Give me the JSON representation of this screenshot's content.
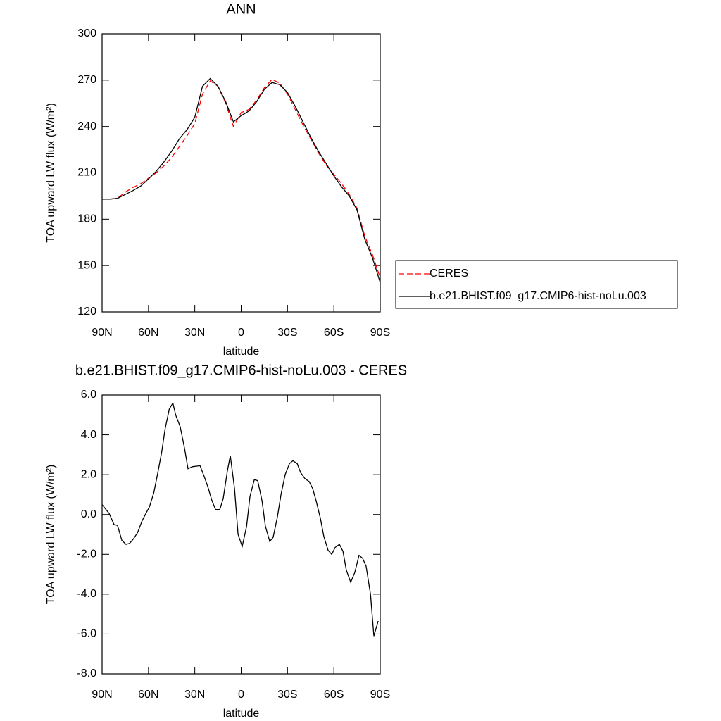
{
  "chart_data": [
    {
      "type": "line",
      "title": "ANN",
      "x_label": "latitude",
      "y_label": "TOA upward LW flux (W/m²)",
      "x": [
        90,
        85,
        80,
        75,
        70,
        65,
        60,
        55,
        50,
        45,
        40,
        35,
        30,
        25,
        20,
        15,
        10,
        5,
        0,
        -5,
        -10,
        -15,
        -20,
        -25,
        -30,
        -35,
        -40,
        -45,
        -50,
        -55,
        -60,
        -65,
        -70,
        -75,
        -80,
        -85,
        -90
      ],
      "series": [
        {
          "name": "CERES",
          "color": "#ff0000",
          "line_style": "dashed",
          "values": [
            193,
            193,
            193.5,
            197.5,
            200.5,
            203,
            206.5,
            210,
            214.5,
            220,
            227,
            234,
            242,
            261,
            269.5,
            266,
            255,
            240,
            249,
            251,
            257,
            265,
            270.5,
            268,
            261,
            251,
            241,
            232,
            223,
            215,
            209,
            203,
            196,
            187,
            169,
            157,
            142
          ]
        },
        {
          "name": "b.e21.BHIST.f09_g17.CMIP6-hist-noLu.003",
          "color": "#000000",
          "line_style": "solid",
          "values": [
            193,
            193,
            193.5,
            196,
            198.5,
            201.5,
            206,
            211,
            217,
            224,
            232,
            238,
            246,
            266,
            271,
            266,
            256,
            243,
            247,
            250,
            256,
            264,
            268.5,
            267,
            262,
            253,
            243,
            233,
            224,
            216,
            208,
            201,
            195,
            186,
            167,
            155,
            139
          ]
        }
      ],
      "xlim": [
        90,
        -90
      ],
      "xticks": [
        {
          "value": 90,
          "label": "90N"
        },
        {
          "value": 60,
          "label": "60N"
        },
        {
          "value": 30,
          "label": "30N"
        },
        0,
        {
          "value": -30,
          "label": "30S"
        },
        {
          "value": -60,
          "label": "60S"
        },
        {
          "value": -90,
          "label": "90S"
        }
      ],
      "ylim": [
        120,
        300
      ],
      "yticks": [
        120,
        150,
        180,
        210,
        240,
        270,
        300
      ],
      "legend": "right"
    },
    {
      "type": "line",
      "title": "b.e21.BHIST.f09_g17.CMIP6-hist-noLu.003 - CERES",
      "x_label": "latitude",
      "y_label": "TOA upward LW flux (W/m²)",
      "x": [
        90,
        85.4,
        82.3,
        80,
        77.2,
        74.5,
        72.2,
        69.5,
        67,
        64.3,
        62,
        59.3,
        56.5,
        54.2,
        51.5,
        49.2,
        46.5,
        44.2,
        42.4,
        39.4,
        36.6,
        34.4,
        31.6,
        26.6,
        23.9,
        21.6,
        18.9,
        16.6,
        13.8,
        11.6,
        8.9,
        7,
        4.3,
        2,
        -0.7,
        -3.5,
        -5.7,
        -8.5,
        -10.7,
        -13.5,
        -15.7,
        -18.5,
        -20.7,
        -23.5,
        -25.8,
        -28.5,
        -31.2,
        -33.5,
        -36.3,
        -38.5,
        -41.3,
        -44,
        -46.3,
        -48.5,
        -51.3,
        -53.5,
        -56.3,
        -58.6,
        -60.9,
        -63.6,
        -65.9,
        -68.1,
        -70.9,
        -73.6,
        -76.3,
        -78.6,
        -80.9,
        -83.7,
        -85.9,
        -88.7
      ],
      "series": [
        {
          "color": "#000000",
          "line_style": "solid",
          "values": [
            0.5,
            0.05,
            -0.5,
            -0.55,
            -1.3,
            -1.5,
            -1.45,
            -1.2,
            -0.9,
            -0.35,
            0,
            0.4,
            1.1,
            2,
            3.1,
            4.3,
            5.3,
            5.6,
            5,
            4.4,
            3.3,
            2.3,
            2.4,
            2.45,
            1.9,
            1.4,
            0.7,
            0.25,
            0.25,
            0.8,
            2.2,
            2.95,
            1.3,
            -1,
            -1.6,
            -0.6,
            0.9,
            1.75,
            1.7,
            0.7,
            -0.6,
            -1.35,
            -1.15,
            -0.1,
            1,
            2,
            2.55,
            2.7,
            2.55,
            2.1,
            1.8,
            1.65,
            1.3,
            0.7,
            -0.2,
            -1.1,
            -1.8,
            -2,
            -1.65,
            -1.5,
            -1.85,
            -2.8,
            -3.4,
            -2.9,
            -2.05,
            -2.2,
            -2.6,
            -4,
            -6.1,
            -5.35
          ]
        }
      ],
      "xlim": [
        90,
        -90
      ],
      "xticks": [
        {
          "value": 90,
          "label": "90N"
        },
        {
          "value": 60,
          "label": "60N"
        },
        {
          "value": 30,
          "label": "30N"
        },
        0,
        {
          "value": -30,
          "label": "30S"
        },
        {
          "value": -60,
          "label": "60S"
        },
        {
          "value": -90,
          "label": "90S"
        }
      ],
      "ylim": [
        -8,
        6
      ],
      "yticks": [
        {
          "value": -8,
          "label": "-8.0"
        },
        {
          "value": -6,
          "label": "-6.0"
        },
        {
          "value": -4,
          "label": "-4.0"
        },
        {
          "value": -2,
          "label": "-2.0"
        },
        {
          "value": 0,
          "label": "0.0"
        },
        {
          "value": 2,
          "label": "2.0"
        },
        {
          "value": 4,
          "label": "4.0"
        },
        {
          "value": 6,
          "label": "6.0"
        }
      ]
    }
  ]
}
